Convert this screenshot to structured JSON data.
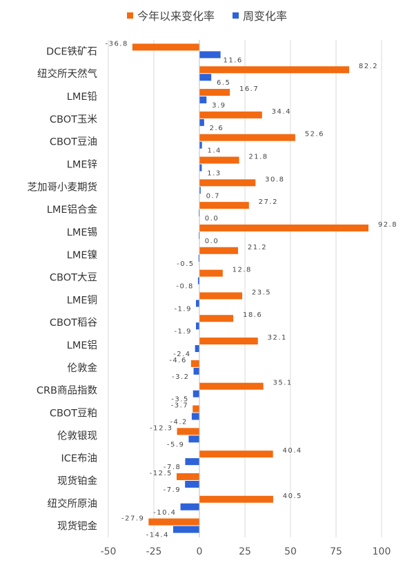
{
  "chart_data": {
    "type": "bar",
    "orientation": "horizontal",
    "categories": [
      "DCE铁矿石",
      "纽交所天然气",
      "LME铅",
      "CBOT玉米",
      "CBOT豆油",
      "LME锌",
      "芝加哥小麦期货",
      "LME铝合金",
      "LME锡",
      "LME镍",
      "CBOT大豆",
      "LME铜",
      "CBOT稻谷",
      "LME铝",
      "伦敦金",
      "CRB商品指数",
      "CBOT豆粕",
      "伦敦银现",
      "ICE布油",
      "现货铂金",
      "纽交所原油",
      "现货钯金"
    ],
    "series": [
      {
        "name": "今年以来变化率",
        "color": "#F36A10",
        "values": [
          -36.8,
          82.2,
          16.7,
          34.4,
          52.6,
          21.8,
          30.8,
          27.2,
          92.8,
          21.2,
          12.8,
          23.5,
          18.6,
          32.1,
          -4.6,
          35.1,
          -3.7,
          -12.3,
          40.4,
          -12.5,
          40.5,
          -27.9
        ]
      },
      {
        "name": "周变化率",
        "color": "#2E62D9",
        "values": [
          11.6,
          6.5,
          3.9,
          2.6,
          1.4,
          1.3,
          0.7,
          0.0,
          0.0,
          -0.5,
          -0.8,
          -1.9,
          -1.9,
          -2.4,
          -3.2,
          -3.5,
          -4.2,
          -5.9,
          -7.8,
          -7.9,
          -10.4,
          -14.4
        ]
      }
    ],
    "xlim": [
      -50,
      100
    ],
    "xticks": [
      "-50",
      "-25",
      "0",
      "25",
      "50",
      "75",
      "100"
    ],
    "grid": true,
    "legend": "top-center"
  }
}
